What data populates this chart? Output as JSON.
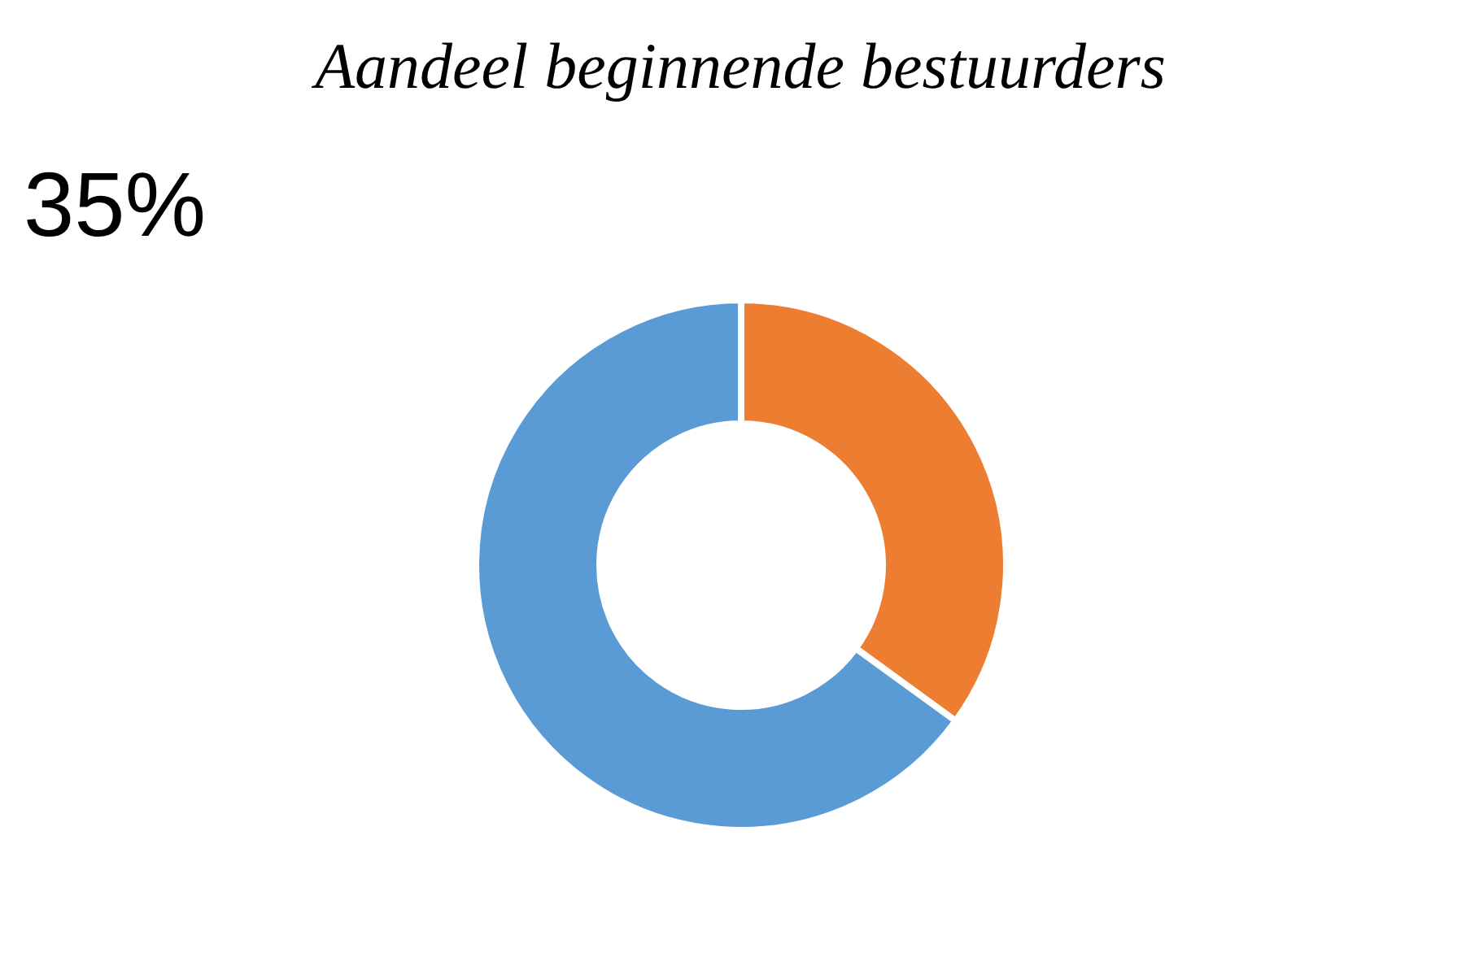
{
  "chart_data": {
    "type": "donut",
    "title": "Aandeel beginnende bestuurders",
    "categories": [
      null,
      null
    ],
    "values": [
      35,
      65
    ],
    "colors": [
      "#ed7d31",
      "#5b9bd5"
    ],
    "annotations": [
      "35%"
    ]
  }
}
